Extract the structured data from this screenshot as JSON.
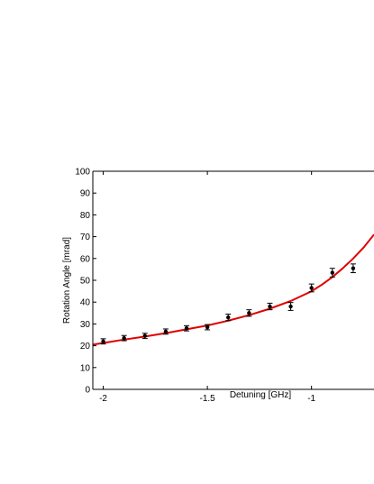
{
  "chart_data": {
    "type": "scatter",
    "title": "",
    "xlabel": "Detuning [GHz]",
    "ylabel": "Rotation Angle [mrad]",
    "xlim": [
      -2.05,
      -0.7
    ],
    "ylim": [
      0,
      100
    ],
    "xticks": [
      -2,
      -1.5,
      -1
    ],
    "xtick_labels": [
      "-2",
      "-1.5",
      "-1"
    ],
    "yticks": [
      0,
      10,
      20,
      30,
      40,
      50,
      60,
      70,
      80,
      90,
      100
    ],
    "ytick_labels": [
      "0",
      "10",
      "20",
      "30",
      "40",
      "50",
      "60",
      "70",
      "80",
      "90",
      "100"
    ],
    "grid": false,
    "legend": "none",
    "series": [
      {
        "kind": "scatter-errorbar",
        "color": "#000000",
        "x": [
          -2.0,
          -1.9,
          -1.8,
          -1.7,
          -1.6,
          -1.5,
          -1.4,
          -1.3,
          -1.2,
          -1.1,
          -1.0,
          -0.9,
          -0.8
        ],
        "y": [
          22,
          23.5,
          24.5,
          26.5,
          28,
          28.5,
          33,
          35,
          38,
          38,
          46.5,
          53.5,
          55.5
        ],
        "err": [
          1.2,
          1.2,
          1.2,
          1.2,
          1.2,
          1.2,
          1.5,
          1.5,
          1.5,
          1.8,
          1.8,
          2.0,
          2.0
        ]
      },
      {
        "kind": "line",
        "color": "#e00000",
        "x": [
          -2.05,
          -2.0,
          -1.9,
          -1.8,
          -1.7,
          -1.6,
          -1.5,
          -1.4,
          -1.3,
          -1.2,
          -1.1,
          -1.0,
          -0.95,
          -0.9,
          -0.85,
          -0.8,
          -0.75,
          -0.7
        ],
        "y": [
          20.5,
          21.3,
          22.8,
          24.2,
          25.8,
          27.5,
          29.3,
          31.5,
          34,
          37,
          40.5,
          45,
          48,
          51.5,
          55.5,
          60,
          65,
          71
        ]
      }
    ]
  }
}
